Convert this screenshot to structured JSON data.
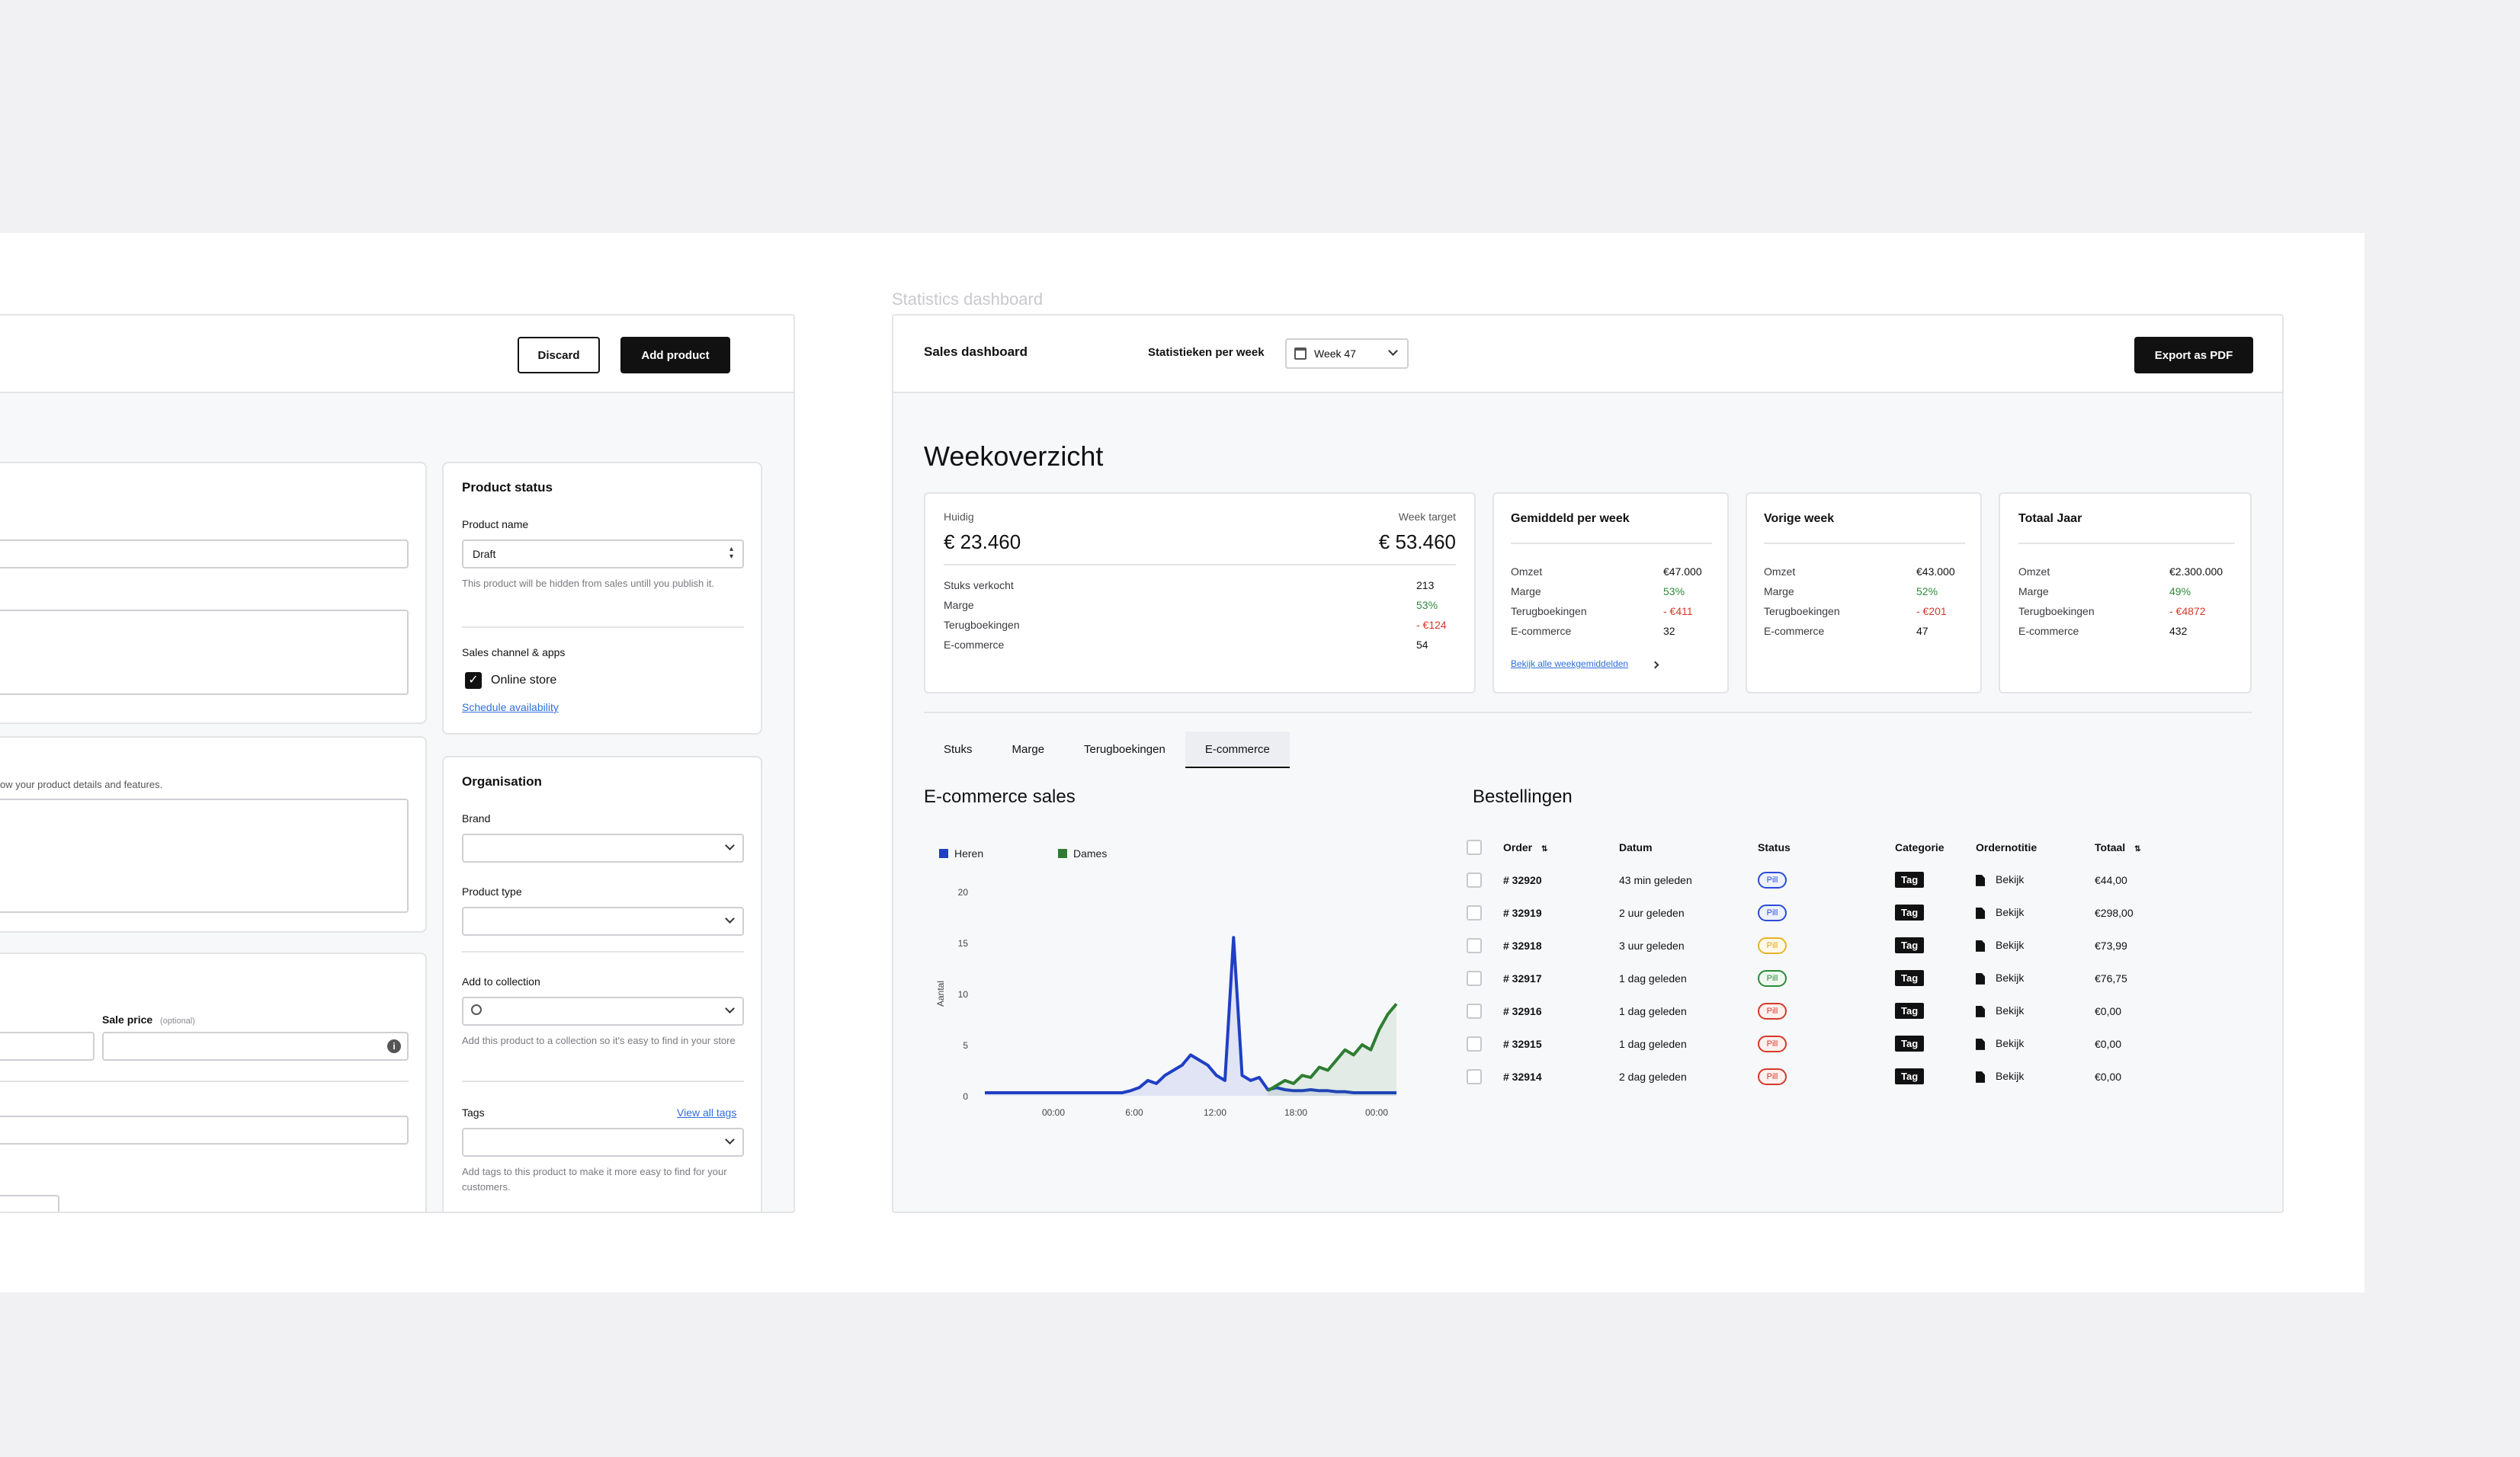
{
  "product_form": {
    "discard_label": "Discard",
    "add_product_label": "Add product",
    "description_hint": "ow your product details and features.",
    "sale_price_label": "Sale price",
    "sale_price_optional": "(optional)",
    "status_card": {
      "title": "Product status",
      "product_name_label": "Product name",
      "product_name_value": "Draft",
      "hidden_hint": "This product will be hidden from sales untill you publish it.",
      "sales_channel_label": "Sales channel & apps",
      "online_store_label": "Online store",
      "schedule_link": "Schedule availability"
    },
    "organisation_card": {
      "title": "Organisation",
      "brand_label": "Brand",
      "product_type_label": "Product type",
      "collection_label": "Add to collection",
      "collection_hint": "Add this product to a collection so it's easy to find in your store",
      "tags_label": "Tags",
      "view_all_tags": "View all tags",
      "tags_hint": "Add tags to this product to make it more easy to find for your customers."
    }
  },
  "dashboard": {
    "caption": "Statistics dashboard",
    "title": "Sales dashboard",
    "week_label": "Statistieken per week",
    "week_value": "Week 47",
    "export_label": "Export as PDF",
    "overview_title": "Weekoverzicht",
    "current": {
      "huidig_label": "Huidig",
      "huidig_value": "€ 23.460",
      "target_label": "Week target",
      "target_value": "€ 53.460",
      "rows": [
        {
          "label": "Stuks verkocht",
          "value": "213"
        },
        {
          "label": "Marge",
          "value": "53%"
        },
        {
          "label": "Terugboekingen",
          "value": "- €124"
        },
        {
          "label": "E-commerce",
          "value": "54"
        }
      ]
    },
    "gemiddeld": {
      "title": "Gemiddeld per week",
      "rows": [
        {
          "label": "Omzet",
          "value": "€47.000"
        },
        {
          "label": "Marge",
          "value": "53%"
        },
        {
          "label": "Terugboekingen",
          "value": "- €411"
        },
        {
          "label": "E-commerce",
          "value": "32"
        }
      ],
      "link": "Bekijk alle weekgemiddelden"
    },
    "vorige": {
      "title": "Vorige week",
      "rows": [
        {
          "label": "Omzet",
          "value": "€43.000"
        },
        {
          "label": "Marge",
          "value": "52%"
        },
        {
          "label": "Terugboekingen",
          "value": "- €201"
        },
        {
          "label": "E-commerce",
          "value": "47"
        }
      ]
    },
    "totaal": {
      "title": "Totaal Jaar",
      "rows": [
        {
          "label": "Omzet",
          "value": "€2.300.000"
        },
        {
          "label": "Marge",
          "value": "49%"
        },
        {
          "label": "Terugboekingen",
          "value": "- €4872"
        },
        {
          "label": "E-commerce",
          "value": "432"
        }
      ]
    },
    "tabs": [
      "Stuks",
      "Marge",
      "Terugboekingen",
      "E-commerce"
    ],
    "active_tab": "E-commerce",
    "ecommerce_title": "E-commerce sales",
    "orders_title": "Bestellingen",
    "orders": {
      "headers": [
        "Order",
        "Datum",
        "Status",
        "Categorie",
        "Ordernotitie",
        "Totaal"
      ],
      "rows": [
        {
          "order": "# 32920",
          "datum": "43 min geleden",
          "status": "Pill",
          "status_color": "blue",
          "categorie": "Tag",
          "notitie": "Bekijk",
          "totaal": "€44,00"
        },
        {
          "order": "# 32919",
          "datum": "2 uur geleden",
          "status": "Pill",
          "status_color": "blue",
          "categorie": "Tag",
          "notitie": "Bekijk",
          "totaal": "€298,00"
        },
        {
          "order": "# 32918",
          "datum": "3 uur geleden",
          "status": "Pill",
          "status_color": "yellow",
          "categorie": "Tag",
          "notitie": "Bekijk",
          "totaal": "€73,99"
        },
        {
          "order": "# 32917",
          "datum": "1 dag geleden",
          "status": "Pill",
          "status_color": "green",
          "categorie": "Tag",
          "notitie": "Bekijk",
          "totaal": "€76,75"
        },
        {
          "order": "# 32916",
          "datum": "1 dag geleden",
          "status": "Pill",
          "status_color": "red",
          "categorie": "Tag",
          "notitie": "Bekijk",
          "totaal": "€0,00"
        },
        {
          "order": "# 32915",
          "datum": "1 dag geleden",
          "status": "Pill",
          "status_color": "red",
          "categorie": "Tag",
          "notitie": "Bekijk",
          "totaal": "€0,00"
        },
        {
          "order": "# 32914",
          "datum": "2 dag geleden",
          "status": "Pill",
          "status_color": "red",
          "categorie": "Tag",
          "notitie": "Bekijk",
          "totaal": "€0,00"
        }
      ]
    }
  },
  "chart_data": {
    "type": "line",
    "title": "E-commerce sales",
    "ylabel": "Aantal",
    "xlabel": "",
    "ylim": [
      0,
      20
    ],
    "yticks": [
      0,
      5,
      10,
      15,
      20
    ],
    "xticks": [
      "00:00",
      "6:00",
      "12:00",
      "18:00",
      "00:00"
    ],
    "legend": "top-left",
    "grid": false,
    "x": [
      0,
      1,
      2,
      3,
      4,
      5,
      6,
      7,
      8,
      9,
      10,
      11,
      12,
      13,
      14,
      15,
      16,
      17,
      18,
      19,
      20,
      21,
      22,
      23,
      24,
      25,
      26,
      27,
      28,
      29,
      30,
      31,
      32,
      33,
      34,
      35,
      36,
      37,
      38,
      39,
      40,
      41,
      42,
      43,
      44,
      45,
      46,
      47,
      48
    ],
    "series": [
      {
        "name": "Heren",
        "color": "#1f3fc4",
        "values": [
          0.3,
          0.3,
          0.3,
          0.3,
          0.3,
          0.3,
          0.3,
          0.3,
          0.3,
          0.3,
          0.3,
          0.3,
          0.3,
          0.3,
          0.3,
          0.3,
          0.3,
          0.5,
          0.8,
          1.5,
          1.2,
          2,
          2.5,
          3,
          4,
          3.5,
          3,
          2,
          1.5,
          15.5,
          2,
          1.5,
          1.8,
          0.6,
          0.8,
          0.6,
          0.5,
          0.5,
          0.6,
          0.5,
          0.5,
          0.4,
          0.4,
          0.3,
          0.3,
          0.3,
          0.3,
          0.3,
          0.3
        ]
      },
      {
        "name": "Dames",
        "color": "#2e7d32",
        "values": [
          null,
          null,
          null,
          null,
          null,
          null,
          null,
          null,
          null,
          null,
          null,
          null,
          null,
          null,
          null,
          null,
          null,
          null,
          null,
          null,
          null,
          null,
          null,
          null,
          null,
          null,
          null,
          null,
          null,
          null,
          null,
          null,
          null,
          0.5,
          1,
          1.5,
          1.2,
          2,
          1.8,
          2.8,
          2.5,
          3.5,
          4.5,
          4,
          5,
          4.5,
          6.5,
          8,
          9
        ]
      }
    ]
  }
}
